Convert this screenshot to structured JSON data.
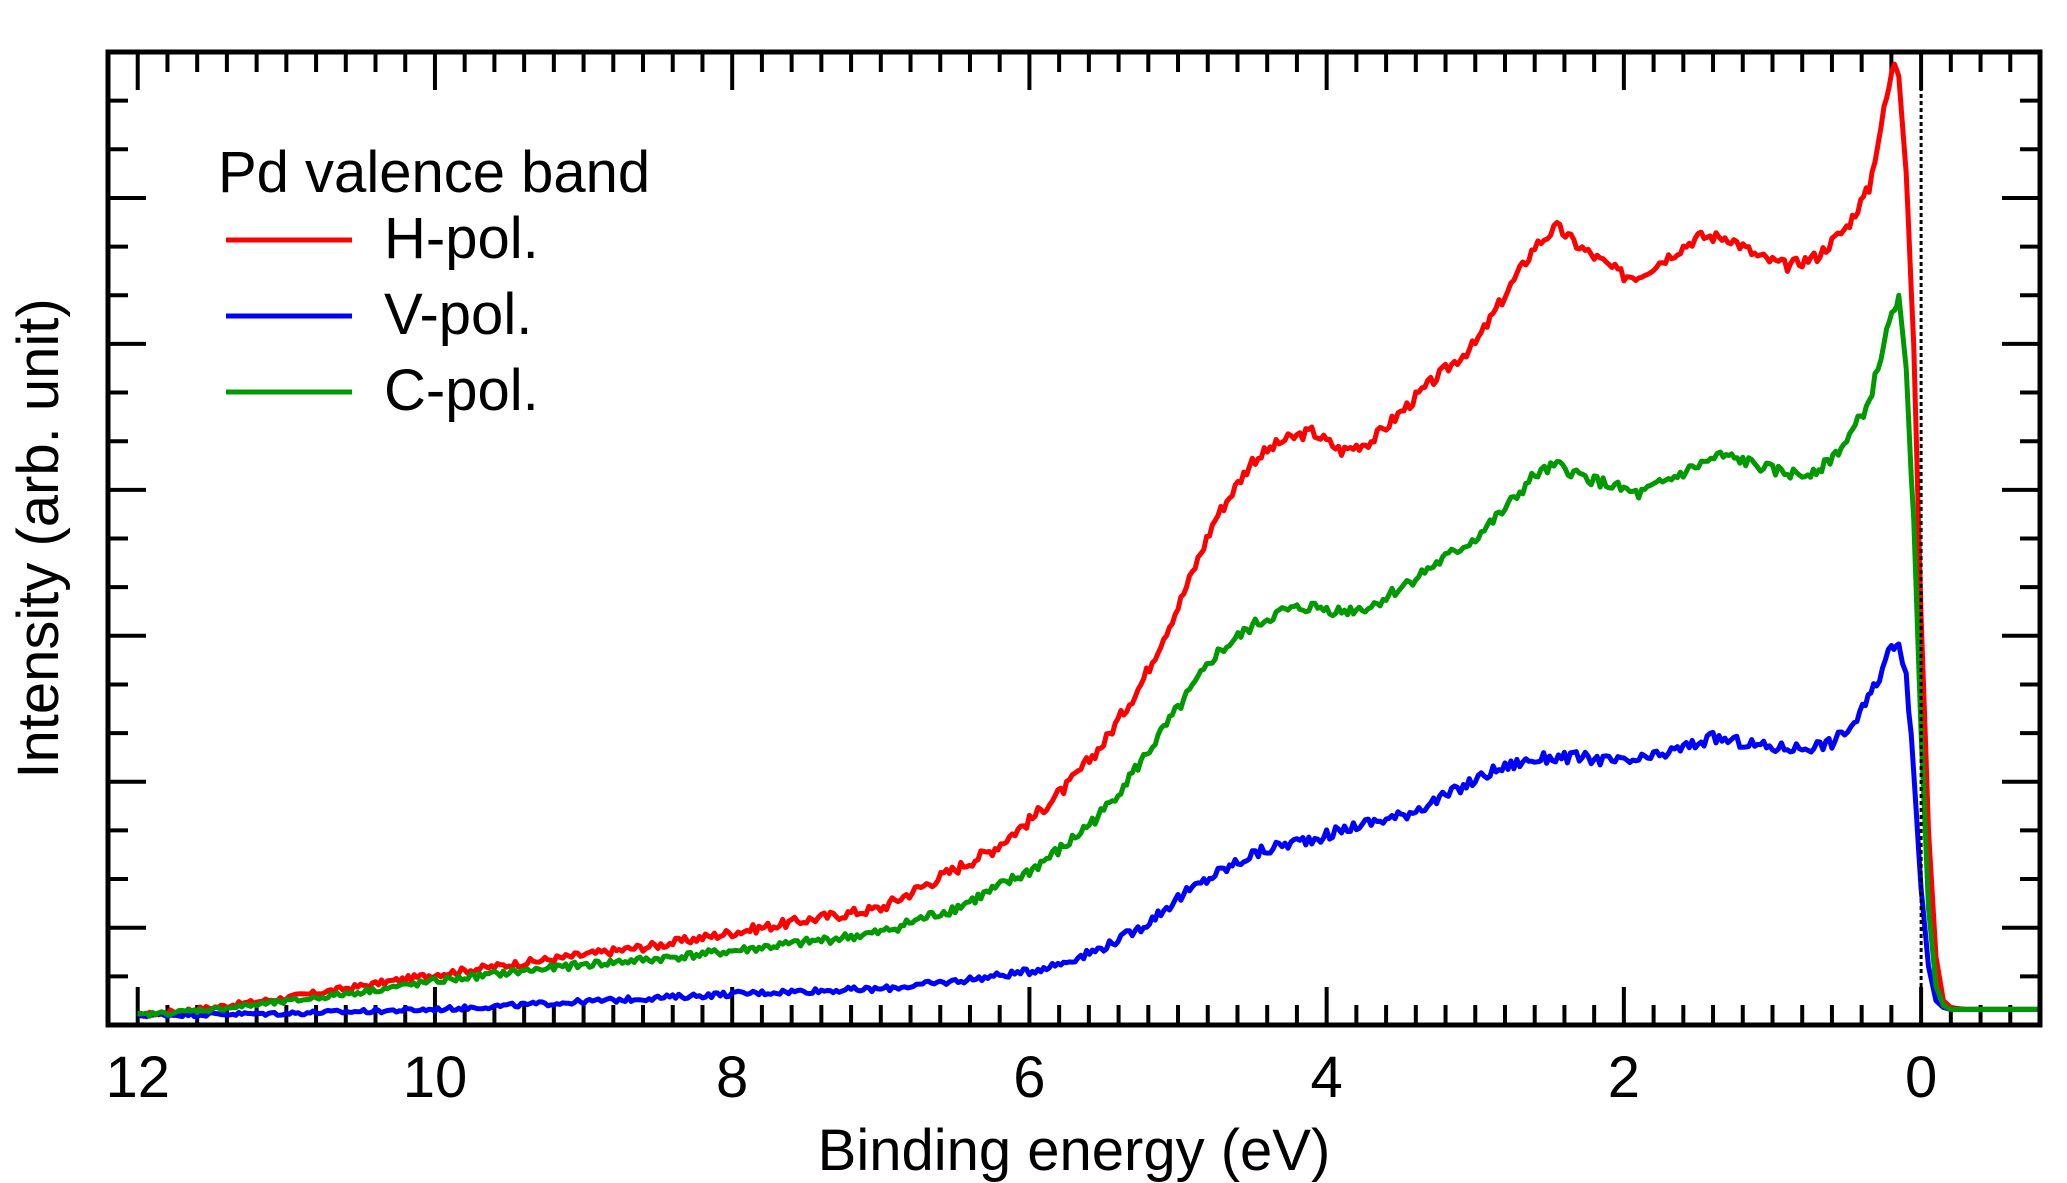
{
  "chart_data": {
    "type": "line",
    "title": "",
    "xlabel": "Binding energy (eV)",
    "ylabel": "Intensity (arb. unit)",
    "xlim": [
      12.2,
      -0.8
    ],
    "ylim": [
      0,
      1.0
    ],
    "x_reversed": true,
    "y_tick_labels_shown": false,
    "x_ticks": [
      12,
      10,
      8,
      6,
      4,
      2,
      0
    ],
    "x_tick_labels": [
      "12",
      "10",
      "8",
      "6",
      "4",
      "2",
      "0"
    ],
    "x_minor_step": 0.2,
    "y_major_ticks": [
      0.1,
      0.25,
      0.4,
      0.55,
      0.7,
      0.85
    ],
    "y_minor_step": 0.05,
    "fermi_level_marker": {
      "x": 0,
      "style": "dotted"
    },
    "legend": {
      "title": "Pd valence band",
      "position": "top-left"
    },
    "series": [
      {
        "name": "H-pol.",
        "color": "#ff0000",
        "x": [
          12.0,
          11.5,
          11.0,
          10.5,
          10.0,
          9.5,
          9.0,
          8.5,
          8.0,
          7.5,
          7.0,
          6.75,
          6.5,
          6.25,
          6.0,
          5.75,
          5.5,
          5.25,
          5.0,
          4.75,
          4.5,
          4.3,
          4.1,
          4.0,
          3.9,
          3.7,
          3.5,
          3.3,
          3.0,
          2.8,
          2.6,
          2.45,
          2.3,
          2.0,
          1.9,
          1.7,
          1.5,
          1.3,
          1.1,
          0.9,
          0.7,
          0.5,
          0.35,
          0.25,
          0.18,
          0.15,
          0.1,
          0.05,
          0.0,
          -0.05,
          -0.1,
          -0.15,
          -0.2,
          -0.3,
          -0.5,
          -0.8
        ],
        "y": [
          0.01,
          0.018,
          0.028,
          0.04,
          0.052,
          0.062,
          0.072,
          0.082,
          0.095,
          0.108,
          0.12,
          0.14,
          0.16,
          0.18,
          0.21,
          0.245,
          0.29,
          0.35,
          0.43,
          0.52,
          0.58,
          0.6,
          0.61,
          0.6,
          0.59,
          0.6,
          0.63,
          0.66,
          0.7,
          0.75,
          0.8,
          0.82,
          0.8,
          0.77,
          0.77,
          0.79,
          0.81,
          0.81,
          0.79,
          0.78,
          0.79,
          0.82,
          0.86,
          0.94,
          0.99,
          0.98,
          0.88,
          0.7,
          0.42,
          0.2,
          0.07,
          0.025,
          0.018,
          0.016,
          0.016,
          0.016
        ]
      },
      {
        "name": "V-pol.",
        "color": "#0000ff",
        "x": [
          12.0,
          11.0,
          10.0,
          9.0,
          8.0,
          7.5,
          7.0,
          6.5,
          6.0,
          5.75,
          5.5,
          5.25,
          5.0,
          4.75,
          4.5,
          4.3,
          4.0,
          3.8,
          3.5,
          3.2,
          2.9,
          2.7,
          2.5,
          2.3,
          2.0,
          1.8,
          1.6,
          1.4,
          1.2,
          1.0,
          0.8,
          0.6,
          0.45,
          0.3,
          0.2,
          0.15,
          0.1,
          0.05,
          0.0,
          -0.05,
          -0.1,
          -0.15,
          -0.2,
          -0.3,
          -0.5,
          -0.8
        ],
        "y": [
          0.01,
          0.012,
          0.016,
          0.024,
          0.032,
          0.035,
          0.037,
          0.045,
          0.055,
          0.065,
          0.08,
          0.1,
          0.13,
          0.155,
          0.175,
          0.185,
          0.195,
          0.205,
          0.215,
          0.235,
          0.26,
          0.27,
          0.275,
          0.275,
          0.27,
          0.275,
          0.285,
          0.295,
          0.29,
          0.285,
          0.285,
          0.29,
          0.31,
          0.35,
          0.39,
          0.395,
          0.36,
          0.26,
          0.14,
          0.06,
          0.025,
          0.018,
          0.016,
          0.016,
          0.016,
          0.016
        ]
      },
      {
        "name": "C-pol.",
        "color": "#009900",
        "x": [
          12.0,
          11.5,
          11.0,
          10.5,
          10.0,
          9.5,
          9.0,
          8.5,
          8.0,
          7.5,
          7.0,
          6.75,
          6.5,
          6.25,
          6.0,
          5.75,
          5.5,
          5.25,
          5.0,
          4.75,
          4.5,
          4.3,
          4.1,
          3.9,
          3.7,
          3.5,
          3.3,
          3.0,
          2.8,
          2.6,
          2.45,
          2.3,
          2.0,
          1.9,
          1.7,
          1.5,
          1.35,
          1.2,
          1.0,
          0.8,
          0.65,
          0.5,
          0.35,
          0.25,
          0.18,
          0.15,
          0.1,
          0.05,
          0.0,
          -0.05,
          -0.1,
          -0.15,
          -0.2,
          -0.3,
          -0.5,
          -0.8
        ],
        "y": [
          0.01,
          0.016,
          0.024,
          0.034,
          0.045,
          0.054,
          0.062,
          0.068,
          0.076,
          0.085,
          0.095,
          0.108,
          0.12,
          0.138,
          0.158,
          0.185,
          0.22,
          0.27,
          0.325,
          0.38,
          0.41,
          0.425,
          0.43,
          0.425,
          0.43,
          0.45,
          0.47,
          0.5,
          0.53,
          0.565,
          0.575,
          0.565,
          0.55,
          0.545,
          0.56,
          0.575,
          0.585,
          0.58,
          0.57,
          0.565,
          0.575,
          0.6,
          0.64,
          0.7,
          0.74,
          0.745,
          0.67,
          0.52,
          0.3,
          0.12,
          0.04,
          0.02,
          0.016,
          0.016,
          0.016,
          0.016
        ]
      }
    ]
  }
}
